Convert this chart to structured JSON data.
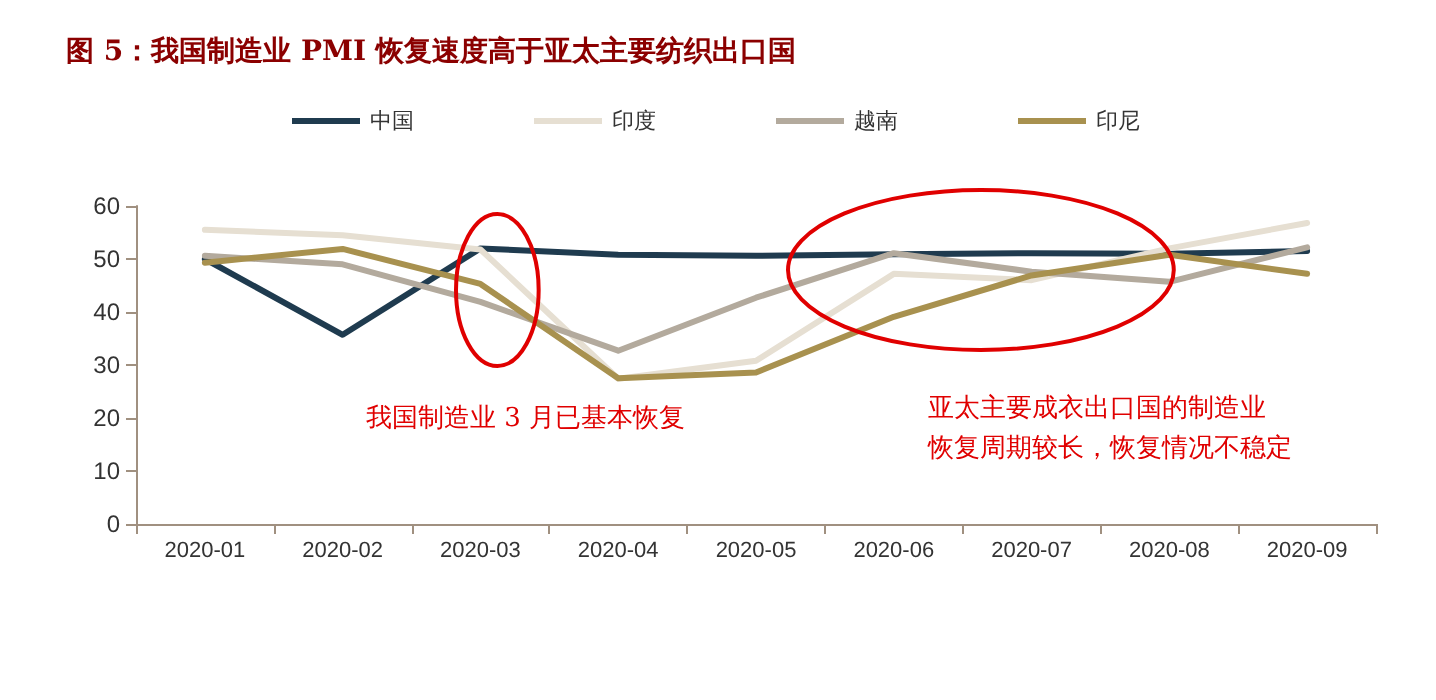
{
  "chart_data": {
    "type": "line",
    "title": "图 5：我国制造业 PMI 恢复速度高于亚太主要纺织出口国",
    "categories": [
      "2020-01",
      "2020-02",
      "2020-03",
      "2020-04",
      "2020-05",
      "2020-06",
      "2020-07",
      "2020-08",
      "2020-09"
    ],
    "series": [
      {
        "name": "中国",
        "color": "#1f3b4f",
        "values": [
          50,
          35.7,
          52,
          50.8,
          50.6,
          50.9,
          51.1,
          51,
          51.5
        ]
      },
      {
        "name": "印度",
        "color": "#e6dfd2",
        "values": [
          55.5,
          54.5,
          51.8,
          27.4,
          30.8,
          47.2,
          46,
          52,
          56.8
        ]
      },
      {
        "name": "越南",
        "color": "#b3aa9d",
        "values": [
          50.6,
          49,
          41.9,
          32.7,
          42.7,
          51.1,
          47.6,
          45.7,
          52.2
        ]
      },
      {
        "name": "印尼",
        "color": "#a8914f",
        "values": [
          49.3,
          51.9,
          45.3,
          27.5,
          28.6,
          39.1,
          46.9,
          50.8,
          47.2
        ]
      }
    ],
    "ylim": [
      0,
      60
    ],
    "yticks": [
      0,
      10,
      20,
      30,
      40,
      50,
      60
    ],
    "grid": false,
    "legend": "top",
    "marker": "none",
    "line_style": "solid",
    "annotations": [
      "我国制造业 3 月已基本恢复",
      "亚太主要成衣出口国的制造业",
      "恢复周期较长，恢复情况不稳定"
    ]
  }
}
